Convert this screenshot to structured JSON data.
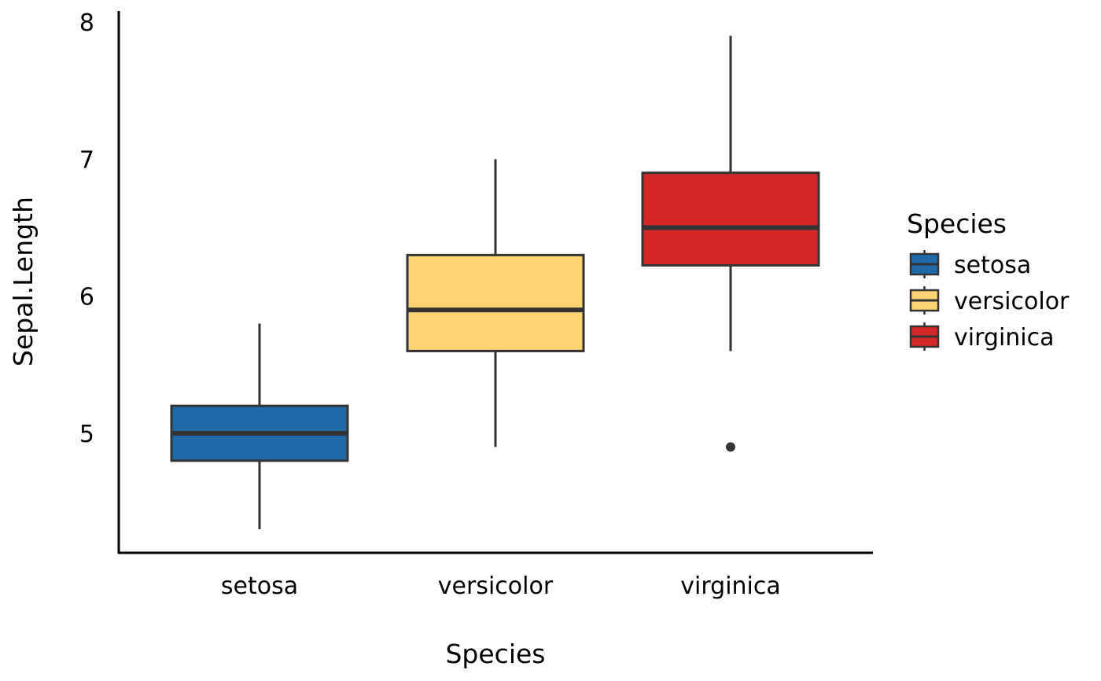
{
  "chart_data": {
    "type": "boxplot",
    "xlabel": "Species",
    "ylabel": "Sepal.Length",
    "categories": [
      "setosa",
      "versicolor",
      "virginica"
    ],
    "ylim": [
      4.1,
      8.07
    ],
    "y_ticks": [
      5,
      6,
      7,
      8
    ],
    "grid": false,
    "legend": {
      "title": "Species",
      "position": "right",
      "entries": [
        "setosa",
        "versicolor",
        "virginica"
      ]
    },
    "series": [
      {
        "category": "setosa",
        "whisker_low": 4.3,
        "q1": 4.8,
        "median": 5.0,
        "q3": 5.2,
        "whisker_high": 5.8,
        "outliers": [],
        "color": "#1f6aa9"
      },
      {
        "category": "versicolor",
        "whisker_low": 4.9,
        "q1": 5.6,
        "median": 5.9,
        "q3": 6.3,
        "whisker_high": 7.0,
        "outliers": [],
        "color": "#fcd472"
      },
      {
        "category": "virginica",
        "whisker_low": 5.6,
        "q1": 6.225,
        "median": 6.5,
        "q3": 6.9,
        "whisker_high": 7.9,
        "outliers": [
          4.9
        ],
        "color": "#d42828"
      }
    ],
    "line_color": "#333333"
  }
}
